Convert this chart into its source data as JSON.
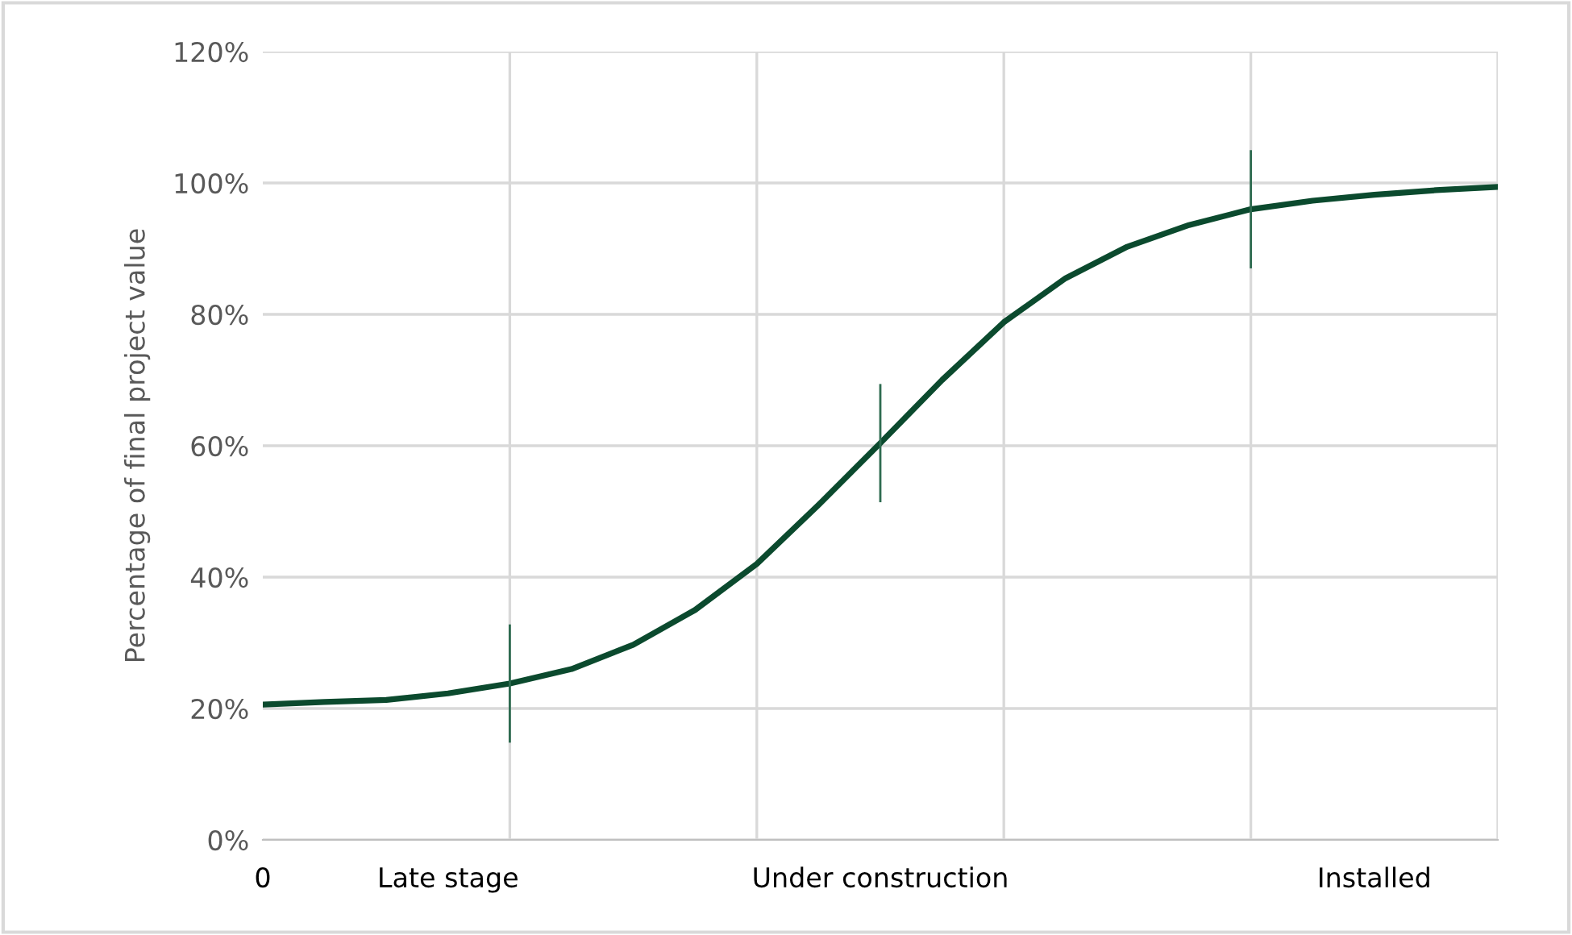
{
  "chart_data": {
    "type": "line",
    "ylabel": "Percentage of final project value",
    "categories": [
      "0",
      null,
      null,
      "Late stage",
      null,
      null,
      null,
      null,
      null,
      null,
      "Under construction",
      null,
      null,
      null,
      null,
      null,
      null,
      null,
      "Installed",
      null,
      null
    ],
    "series": [
      {
        "color": "#0b4a2e",
        "values": [
          20.6,
          21,
          21.3,
          22.3,
          23.8,
          26,
          29.7,
          35,
          42,
          51,
          60.4,
          70,
          78.8,
          85.5,
          90.3,
          93.6,
          96,
          97.3,
          98.2,
          98.9,
          99.4
        ],
        "errors": [
          null,
          null,
          null,
          null,
          9,
          null,
          null,
          null,
          null,
          null,
          9,
          null,
          null,
          null,
          null,
          null,
          9,
          null,
          null,
          null,
          null
        ]
      }
    ],
    "ylim": [
      0,
      120
    ],
    "yticks": [
      {
        "value": 0,
        "label": "0%"
      },
      {
        "value": 20,
        "label": "20%"
      },
      {
        "value": 40,
        "label": "40%"
      },
      {
        "value": 60,
        "label": "60%"
      },
      {
        "value": 80,
        "label": "80%"
      },
      {
        "value": 100,
        "label": "100%"
      },
      {
        "value": 120,
        "label": "120%"
      }
    ],
    "grid": true,
    "marker": "none",
    "line_style": "solid"
  }
}
